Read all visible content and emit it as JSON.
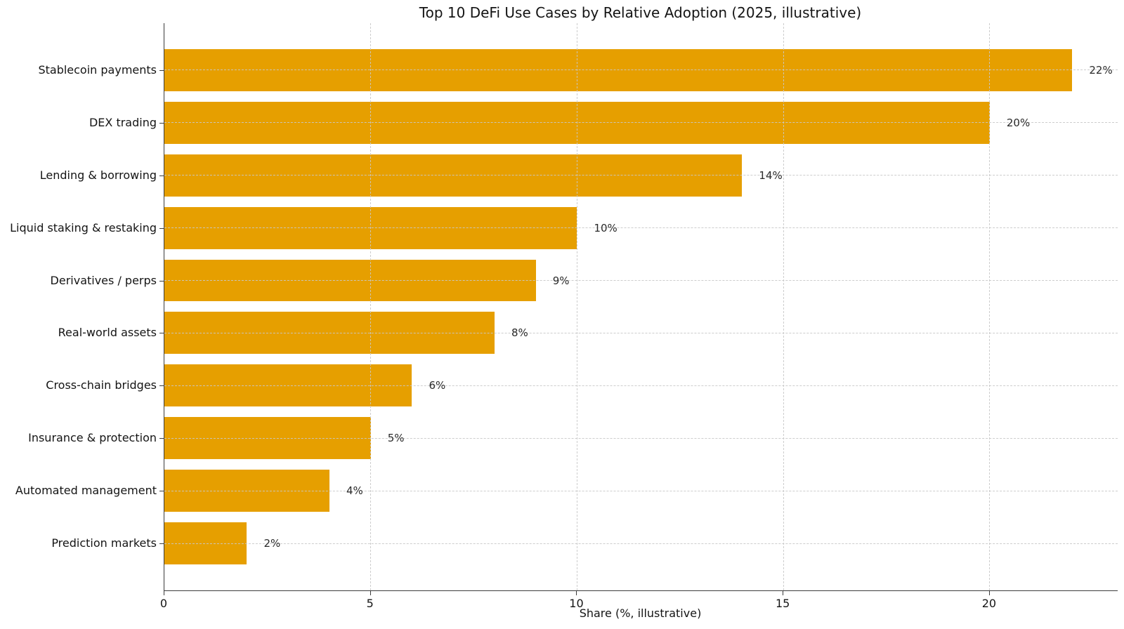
{
  "chart_data": {
    "type": "bar",
    "orientation": "horizontal",
    "title": "Top 10 DeFi Use Cases by Relative Adoption (2025, illustrative)",
    "xlabel": "Share (%, illustrative)",
    "ylabel": "",
    "categories": [
      "Stablecoin payments",
      "DEX trading",
      "Lending & borrowing",
      "Liquid staking & restaking",
      "Derivatives / perps",
      "Real-world assets",
      "Cross-chain bridges",
      "Insurance & protection",
      "Automated management",
      "Prediction markets"
    ],
    "values": [
      22,
      20,
      14,
      10,
      9,
      8,
      6,
      5,
      4,
      2
    ],
    "value_labels": [
      "22%",
      "20%",
      "14%",
      "10%",
      "9%",
      "8%",
      "6%",
      "5%",
      "4%",
      "2%"
    ],
    "xticks": [
      0,
      5,
      10,
      15,
      20
    ],
    "xtick_labels": [
      "0",
      "5",
      "10",
      "15",
      "20"
    ],
    "xlim": [
      0,
      23.1
    ],
    "grid": true,
    "grid_style": "dashed",
    "legend": "none",
    "colors": {
      "bar": "#E69F00",
      "grid": "#c8c8c8",
      "spine": "#3c3c3c",
      "text": "#141414",
      "background": "#ffffff"
    }
  }
}
